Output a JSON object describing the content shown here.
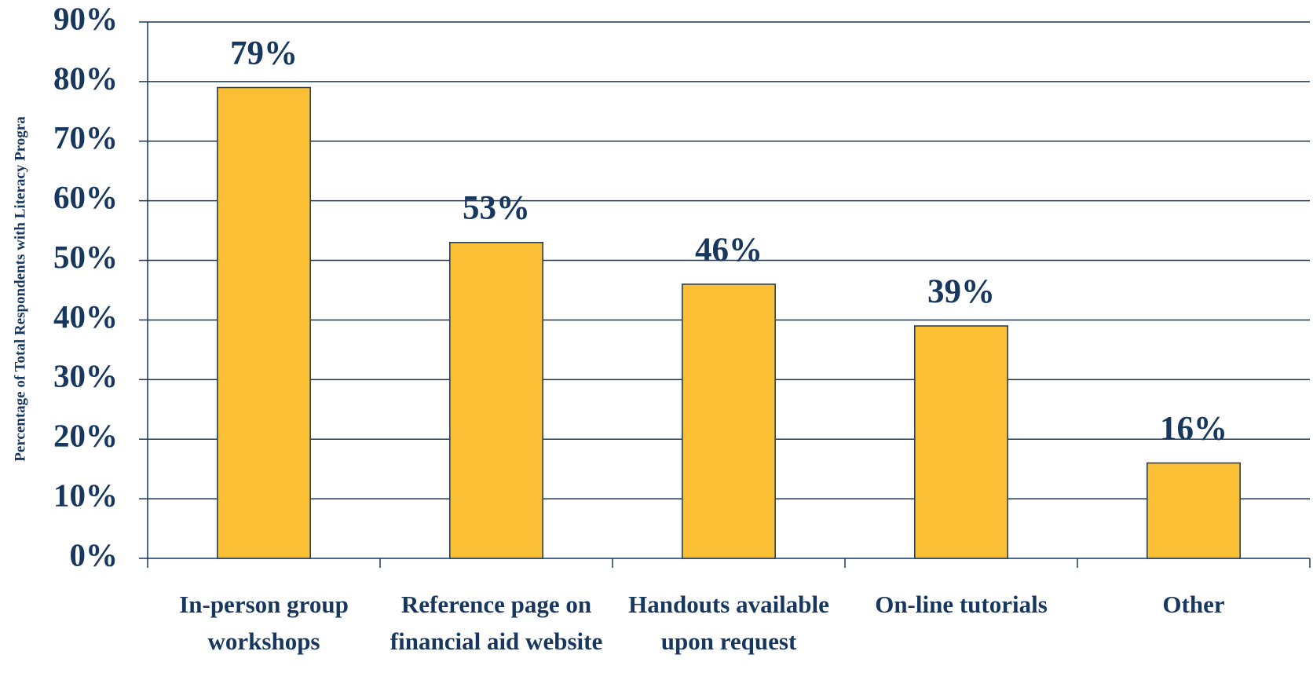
{
  "chart_data": {
    "type": "bar",
    "y_label": "Percentage of Total Respondents with Literacy Progra",
    "categories": [
      "In-person group workshops",
      "Reference page on financial aid website",
      "Handouts available upon request",
      "On-line tutorials",
      "Other"
    ],
    "values": [
      79,
      53,
      46,
      39,
      16
    ],
    "value_labels": [
      "79%",
      "53%",
      "46%",
      "39%",
      "16%"
    ],
    "color": "#fbbf36",
    "ylim": [
      0,
      90
    ],
    "yticks": [
      {
        "value": 0,
        "label": "0%"
      },
      {
        "value": 10,
        "label": "10%"
      },
      {
        "value": 20,
        "label": "20%"
      },
      {
        "value": 30,
        "label": "30%"
      },
      {
        "value": 40,
        "label": "40%"
      },
      {
        "value": 50,
        "label": "50%"
      },
      {
        "value": 60,
        "label": "60%"
      },
      {
        "value": 70,
        "label": "70%"
      },
      {
        "value": 80,
        "label": "80%"
      },
      {
        "value": 90,
        "label": "90%"
      }
    ],
    "grid": true
  }
}
